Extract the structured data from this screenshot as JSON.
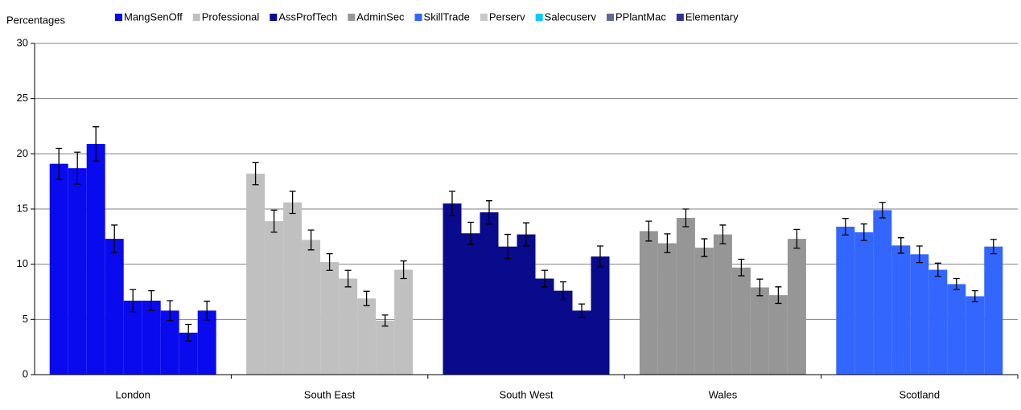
{
  "chart_data": {
    "type": "bar",
    "y_label": "Percentages",
    "categories": [
      "London",
      "South East",
      "South West",
      "Wales",
      "Scotland"
    ],
    "ylim": [
      0,
      30
    ],
    "yticks": [
      0,
      5,
      10,
      15,
      20,
      25,
      30
    ],
    "grid": true,
    "series": [
      {
        "name": "MangSenOff",
        "color": "#0a0aee",
        "values": [
          19.1,
          18.2,
          15.5,
          13.0,
          13.4
        ],
        "errors": [
          1.4,
          1.0,
          1.1,
          0.9,
          0.75
        ]
      },
      {
        "name": "Professional",
        "color": "#c0c0c0",
        "values": [
          18.7,
          13.9,
          12.8,
          11.9,
          12.9
        ],
        "errors": [
          1.45,
          1.0,
          1.0,
          0.85,
          0.75
        ]
      },
      {
        "name": "AssProfTech",
        "color": "#0a0a8c",
        "values": [
          20.9,
          15.6,
          14.7,
          14.2,
          14.9
        ],
        "errors": [
          1.55,
          1.0,
          1.05,
          0.8,
          0.7
        ]
      },
      {
        "name": "AdminSec",
        "color": "#969696",
        "values": [
          12.3,
          12.2,
          11.6,
          11.5,
          11.7
        ],
        "errors": [
          1.25,
          0.9,
          1.1,
          0.8,
          0.7
        ]
      },
      {
        "name": "SkillTrade",
        "color": "#3366ff",
        "values": [
          6.7,
          10.2,
          12.7,
          12.7,
          10.9
        ],
        "errors": [
          1.0,
          0.75,
          1.05,
          0.85,
          0.75
        ]
      },
      {
        "name": "Perserv",
        "color": "#c8c8c8",
        "values": [
          6.7,
          8.7,
          8.7,
          9.7,
          9.5
        ],
        "errors": [
          0.9,
          0.75,
          0.75,
          0.75,
          0.6
        ]
      },
      {
        "name": "Salecuserv",
        "color": "#00ccff",
        "values": [
          5.8,
          6.9,
          7.6,
          7.9,
          8.2
        ],
        "errors": [
          0.9,
          0.65,
          0.8,
          0.75,
          0.5
        ]
      },
      {
        "name": "PPlantMac",
        "color": "#666699",
        "values": [
          3.8,
          4.9,
          5.8,
          7.2,
          7.1
        ],
        "errors": [
          0.75,
          0.5,
          0.6,
          0.75,
          0.5
        ]
      },
      {
        "name": "Elementary",
        "color": "#333399",
        "values": [
          5.8,
          9.5,
          10.7,
          12.3,
          11.6
        ],
        "errors": [
          0.85,
          0.8,
          0.95,
          0.85,
          0.65
        ]
      }
    ]
  }
}
